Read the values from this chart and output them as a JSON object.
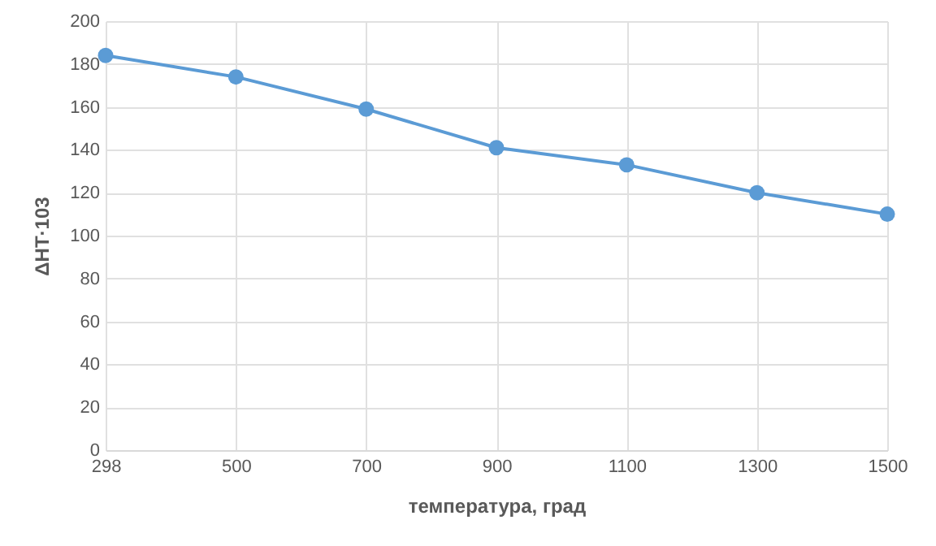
{
  "chart_data": {
    "type": "line",
    "xlabel": "температура, град",
    "ylabel": "ΔHT·103",
    "categories": [
      "298",
      "500",
      "700",
      "900",
      "1100",
      "1300",
      "1500"
    ],
    "series": [
      {
        "color": "#5b9bd5",
        "values": [
          184,
          174,
          159,
          141,
          133,
          120,
          110
        ]
      }
    ],
    "ylim": [
      0,
      200
    ],
    "yticks": [
      0,
      20,
      40,
      60,
      80,
      100,
      120,
      140,
      160,
      180,
      200
    ],
    "grid": true,
    "marker": "circle",
    "line_style": "solid"
  }
}
